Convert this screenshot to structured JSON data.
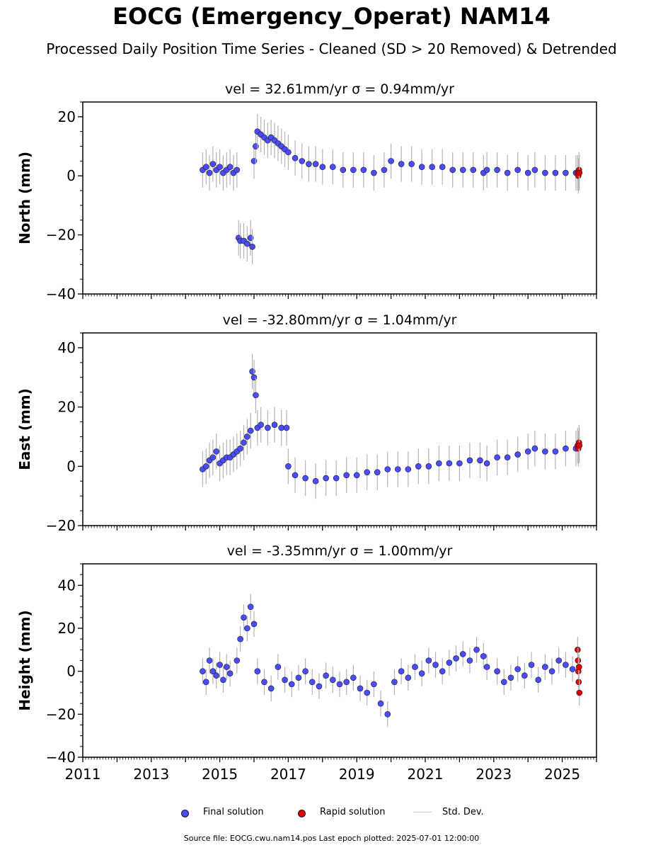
{
  "title": "EOCG (Emergency_Operat) NAM14",
  "subtitle": "Processed Daily Position Time Series - Cleaned (SD > 20 Removed) & Detrended",
  "colors": {
    "final": "#4b4bff",
    "rapid": "#e00000",
    "stddev": "#b4b4b4",
    "edge": "#1a1a1a"
  },
  "legend": {
    "final": "Final solution",
    "rapid": "Rapid solution",
    "stddev": "Std. Dev."
  },
  "source": "Source file: EOCG.cwu.nam14.pos  Last epoch plotted: 2025-07-01 12:00:00",
  "chart_data": [
    {
      "type": "scatter",
      "ylabel": "North (mm)",
      "subplot_title": "vel = 32.61mm/yr   σ = 0.94mm/yr",
      "ylim": [
        -40,
        25
      ],
      "yticks": [
        -40,
        -20,
        0,
        20
      ],
      "xlim": [
        2011,
        2026
      ],
      "xticks": [
        2011,
        2013,
        2015,
        2017,
        2019,
        2021,
        2023,
        2025
      ],
      "show_xtick_labels": false,
      "series": [
        {
          "name": "Final solution",
          "x": [
            2014.5,
            2014.6,
            2014.7,
            2014.8,
            2014.9,
            2015.0,
            2015.1,
            2015.2,
            2015.3,
            2015.4,
            2015.5,
            2015.55,
            2015.6,
            2015.7,
            2015.8,
            2015.9,
            2015.95,
            2016.0,
            2016.05,
            2016.1,
            2016.2,
            2016.3,
            2016.4,
            2016.5,
            2016.6,
            2016.7,
            2016.8,
            2016.9,
            2017.0,
            2017.2,
            2017.4,
            2017.6,
            2017.8,
            2018.0,
            2018.3,
            2018.6,
            2018.9,
            2019.2,
            2019.5,
            2019.8,
            2020.0,
            2020.3,
            2020.6,
            2020.9,
            2021.2,
            2021.5,
            2021.8,
            2022.1,
            2022.4,
            2022.7,
            2022.8,
            2023.1,
            2023.4,
            2023.7,
            2024.0,
            2024.2,
            2024.5,
            2024.8,
            2025.1,
            2025.4
          ],
          "y": [
            2,
            3,
            1,
            4,
            2,
            3,
            1,
            2,
            3,
            1,
            2,
            -21,
            -22,
            -22,
            -23,
            -21,
            -24,
            5,
            10,
            15,
            14,
            13,
            12,
            13,
            12,
            11,
            10,
            9,
            8,
            6,
            5,
            4,
            4,
            3,
            3,
            2,
            2,
            2,
            1,
            2,
            5,
            4,
            4,
            3,
            3,
            3,
            2,
            2,
            2,
            1,
            2,
            2,
            1,
            2,
            1,
            2,
            1,
            1,
            1,
            1
          ]
        },
        {
          "name": "Rapid solution",
          "x": [
            2025.45,
            2025.47,
            2025.49,
            2025.5
          ],
          "y": [
            1,
            0,
            2,
            1
          ]
        }
      ]
    },
    {
      "type": "scatter",
      "ylabel": "East (mm)",
      "subplot_title": "vel = -32.80mm/yr   σ = 1.04mm/yr",
      "ylim": [
        -20,
        45
      ],
      "yticks": [
        -20,
        0,
        20,
        40
      ],
      "xlim": [
        2011,
        2026
      ],
      "xticks": [
        2011,
        2013,
        2015,
        2017,
        2019,
        2021,
        2023,
        2025
      ],
      "show_xtick_labels": false,
      "series": [
        {
          "name": "Final solution",
          "x": [
            2014.5,
            2014.6,
            2014.7,
            2014.8,
            2014.9,
            2015.0,
            2015.1,
            2015.2,
            2015.3,
            2015.4,
            2015.5,
            2015.6,
            2015.7,
            2015.8,
            2015.9,
            2015.95,
            2016.0,
            2016.05,
            2016.1,
            2016.2,
            2016.4,
            2016.6,
            2016.8,
            2016.95,
            2017.0,
            2017.2,
            2017.5,
            2017.8,
            2018.1,
            2018.4,
            2018.7,
            2019.0,
            2019.3,
            2019.6,
            2019.9,
            2020.2,
            2020.5,
            2020.8,
            2021.1,
            2021.4,
            2021.7,
            2022.0,
            2022.3,
            2022.6,
            2022.8,
            2023.1,
            2023.4,
            2023.7,
            2024.0,
            2024.2,
            2024.5,
            2024.8,
            2025.1,
            2025.4
          ],
          "y": [
            -1,
            0,
            2,
            3,
            5,
            1,
            2,
            3,
            3,
            4,
            5,
            6,
            8,
            10,
            12,
            32,
            30,
            24,
            13,
            14,
            13,
            14,
            13,
            13,
            0,
            -3,
            -4,
            -5,
            -4,
            -4,
            -3,
            -3,
            -2,
            -2,
            -1,
            -1,
            -1,
            0,
            0,
            1,
            1,
            1,
            2,
            2,
            1,
            3,
            3,
            4,
            5,
            6,
            5,
            5,
            6,
            6
          ]
        },
        {
          "name": "Rapid solution",
          "x": [
            2025.45,
            2025.47,
            2025.49,
            2025.5
          ],
          "y": [
            7,
            6,
            8,
            7
          ]
        }
      ]
    },
    {
      "type": "scatter",
      "ylabel": "Height (mm)",
      "subplot_title": "vel = -3.35mm/yr   σ = 1.00mm/yr",
      "ylim": [
        -40,
        50
      ],
      "yticks": [
        -40,
        -20,
        0,
        20,
        40
      ],
      "xlim": [
        2011,
        2026
      ],
      "xticks": [
        2011,
        2013,
        2015,
        2017,
        2019,
        2021,
        2023,
        2025
      ],
      "show_xtick_labels": true,
      "series": [
        {
          "name": "Final solution",
          "x": [
            2014.5,
            2014.6,
            2014.7,
            2014.8,
            2014.9,
            2015.0,
            2015.1,
            2015.2,
            2015.3,
            2015.5,
            2015.6,
            2015.7,
            2015.8,
            2015.9,
            2016.0,
            2016.1,
            2016.3,
            2016.5,
            2016.7,
            2016.9,
            2017.1,
            2017.3,
            2017.5,
            2017.7,
            2017.9,
            2018.1,
            2018.3,
            2018.5,
            2018.7,
            2018.9,
            2019.1,
            2019.3,
            2019.5,
            2019.7,
            2019.9,
            2020.1,
            2020.3,
            2020.5,
            2020.7,
            2020.9,
            2021.1,
            2021.3,
            2021.5,
            2021.7,
            2021.9,
            2022.1,
            2022.3,
            2022.5,
            2022.7,
            2022.8,
            2023.1,
            2023.3,
            2023.5,
            2023.7,
            2023.9,
            2024.1,
            2024.3,
            2024.5,
            2024.7,
            2024.9,
            2025.1,
            2025.3
          ],
          "y": [
            0,
            -5,
            5,
            0,
            -2,
            3,
            -4,
            2,
            -1,
            5,
            15,
            25,
            20,
            30,
            22,
            0,
            -5,
            -8,
            2,
            -4,
            -6,
            -3,
            0,
            -5,
            -7,
            -2,
            -4,
            -6,
            -5,
            -3,
            -8,
            -10,
            -6,
            -15,
            -20,
            -5,
            0,
            -3,
            2,
            -1,
            5,
            3,
            0,
            4,
            6,
            8,
            5,
            10,
            7,
            2,
            0,
            -5,
            -3,
            1,
            -2,
            3,
            -4,
            2,
            0,
            5,
            3,
            1
          ]
        },
        {
          "name": "Rapid solution",
          "x": [
            2025.45,
            2025.46,
            2025.47,
            2025.48,
            2025.49,
            2025.5
          ],
          "y": [
            10,
            5,
            0,
            -5,
            2,
            -10
          ]
        }
      ]
    }
  ]
}
